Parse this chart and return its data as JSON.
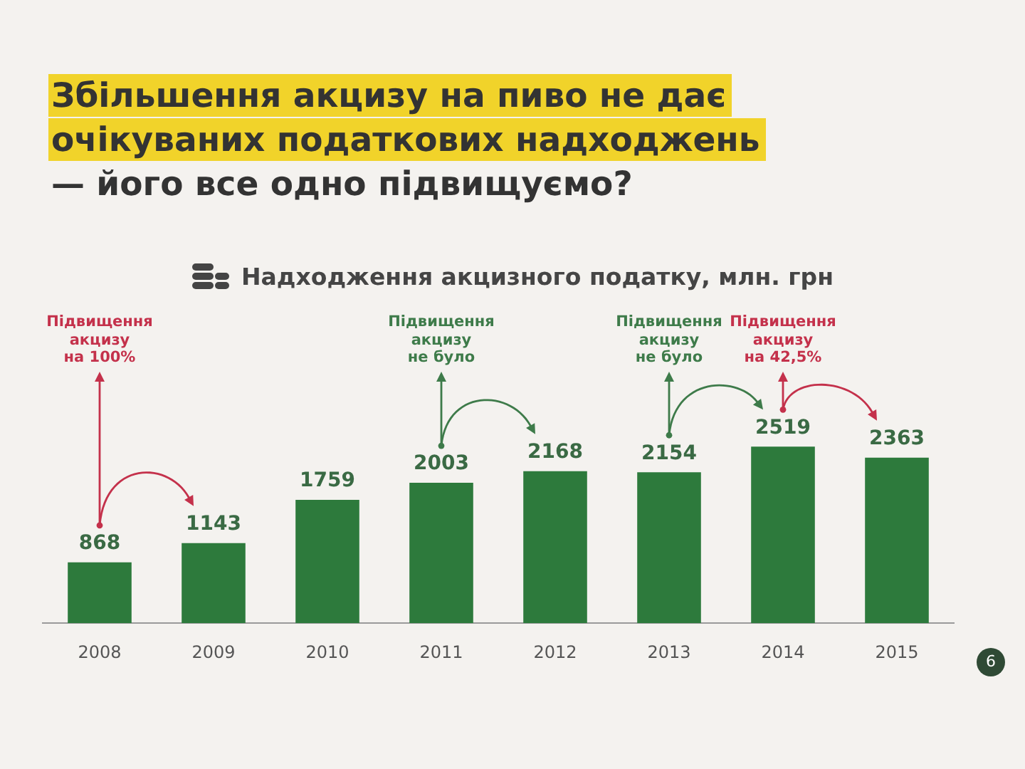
{
  "chart_data": {
    "type": "bar",
    "title": "Збільшення акцизу на пиво не дає\nочікуваних податкових надходжень\n— його все одно підвищуємо?",
    "subtitle": "Надходження акцизного податку, млн. грн",
    "categories": [
      "2008",
      "2009",
      "2010",
      "2011",
      "2012",
      "2013",
      "2014",
      "2015"
    ],
    "values": [
      868,
      1143,
      1759,
      2003,
      2168,
      2154,
      2519,
      2363
    ],
    "color": "#2d7a3c",
    "data_labels": true,
    "legend": false,
    "grid": false,
    "annotations": [
      "Підвищення\nакцизу\nна 100%",
      "Підвищення\nакцизу\nне було",
      "Підвищення\nакцизу\nне було",
      "Підвищення\nакцизу\nна 42,5%",
      "6"
    ]
  }
}
